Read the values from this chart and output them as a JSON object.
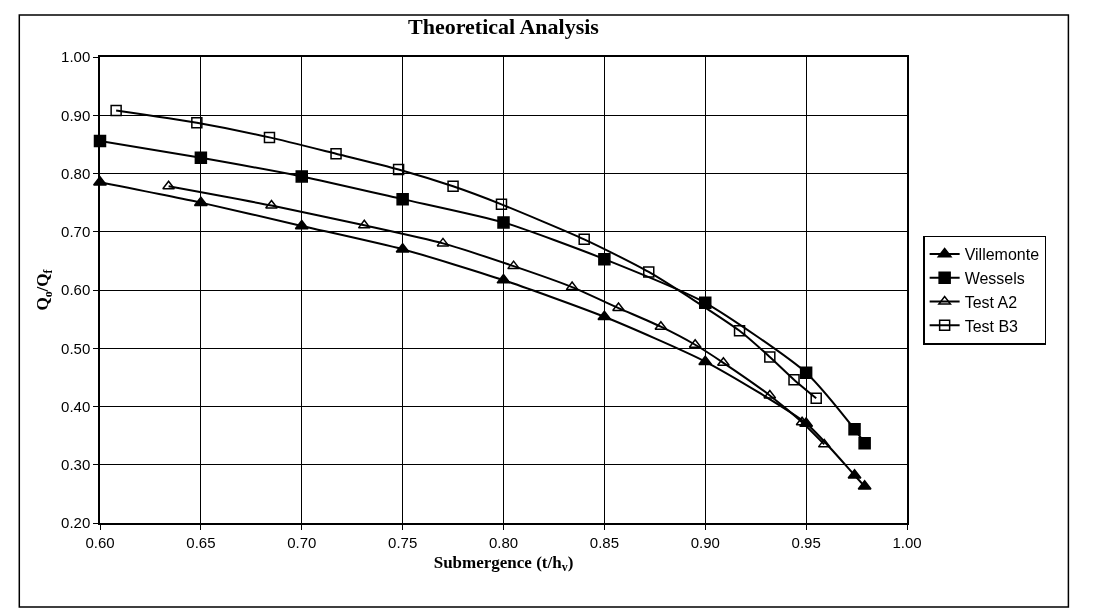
{
  "chart_data": {
    "type": "line",
    "title": "Theoretical Analysis",
    "xlabel": "Submergence (t/h$_{v}$)",
    "ylabel": "Q$_{o}$/Q$_{f}$",
    "xlim": [
      0.6,
      1.0
    ],
    "xticks": [
      {
        "value": 0.6,
        "label": "0.60"
      },
      {
        "value": 0.65,
        "label": "0.65"
      },
      {
        "value": 0.7,
        "label": "0.70"
      },
      {
        "value": 0.75,
        "label": "0.75"
      },
      {
        "value": 0.8,
        "label": "0.80"
      },
      {
        "value": 0.85,
        "label": "0.85"
      },
      {
        "value": 0.9,
        "label": "0.90"
      },
      {
        "value": 0.95,
        "label": "0.95"
      },
      {
        "value": 1.0,
        "label": "1.00"
      }
    ],
    "ylim": [
      0.2,
      1.0
    ],
    "yticks": [
      {
        "value": 0.2,
        "label": "0.20"
      },
      {
        "value": 0.3,
        "label": "0.30"
      },
      {
        "value": 0.4,
        "label": "0.40"
      },
      {
        "value": 0.5,
        "label": "0.50"
      },
      {
        "value": 0.6,
        "label": "0.60"
      },
      {
        "value": 0.7,
        "label": "0.70"
      },
      {
        "value": 0.8,
        "label": "0.80"
      },
      {
        "value": 0.9,
        "label": "0.90"
      },
      {
        "value": 1.0,
        "label": "1.00"
      }
    ],
    "grid": true,
    "legend": "right",
    "series": [
      {
        "name": "Villemonte",
        "color": "#000000",
        "marker": "triangle",
        "x": [
          0.6,
          0.65,
          0.7,
          0.75,
          0.8,
          0.85,
          0.9,
          0.95,
          0.974,
          0.979
        ],
        "values": [
          0.785,
          0.75,
          0.71,
          0.67,
          0.617,
          0.554,
          0.477,
          0.371,
          0.282,
          0.263
        ]
      },
      {
        "name": "Wessels",
        "color": "#000000",
        "marker": "square",
        "x": [
          0.6,
          0.65,
          0.7,
          0.75,
          0.8,
          0.85,
          0.9,
          0.95,
          0.974,
          0.979
        ],
        "values": [
          0.856,
          0.827,
          0.795,
          0.756,
          0.716,
          0.653,
          0.578,
          0.458,
          0.361,
          0.337
        ]
      },
      {
        "name": "Test A2",
        "color": "#000000",
        "marker": "triangle-open",
        "x": [
          0.634,
          0.685,
          0.731,
          0.77,
          0.805,
          0.834,
          0.857,
          0.878,
          0.895,
          0.909,
          0.932,
          0.948,
          0.959
        ],
        "values": [
          0.778,
          0.745,
          0.711,
          0.68,
          0.641,
          0.605,
          0.569,
          0.537,
          0.506,
          0.475,
          0.419,
          0.373,
          0.335
        ]
      },
      {
        "name": "Test B3",
        "color": "#000000",
        "marker": "square-open",
        "x": [
          0.608,
          0.648,
          0.684,
          0.717,
          0.748,
          0.775,
          0.799,
          0.84,
          0.872,
          0.917,
          0.932,
          0.944,
          0.955
        ],
        "values": [
          0.908,
          0.887,
          0.862,
          0.834,
          0.807,
          0.778,
          0.747,
          0.687,
          0.631,
          0.53,
          0.485,
          0.446,
          0.414
        ]
      }
    ]
  }
}
